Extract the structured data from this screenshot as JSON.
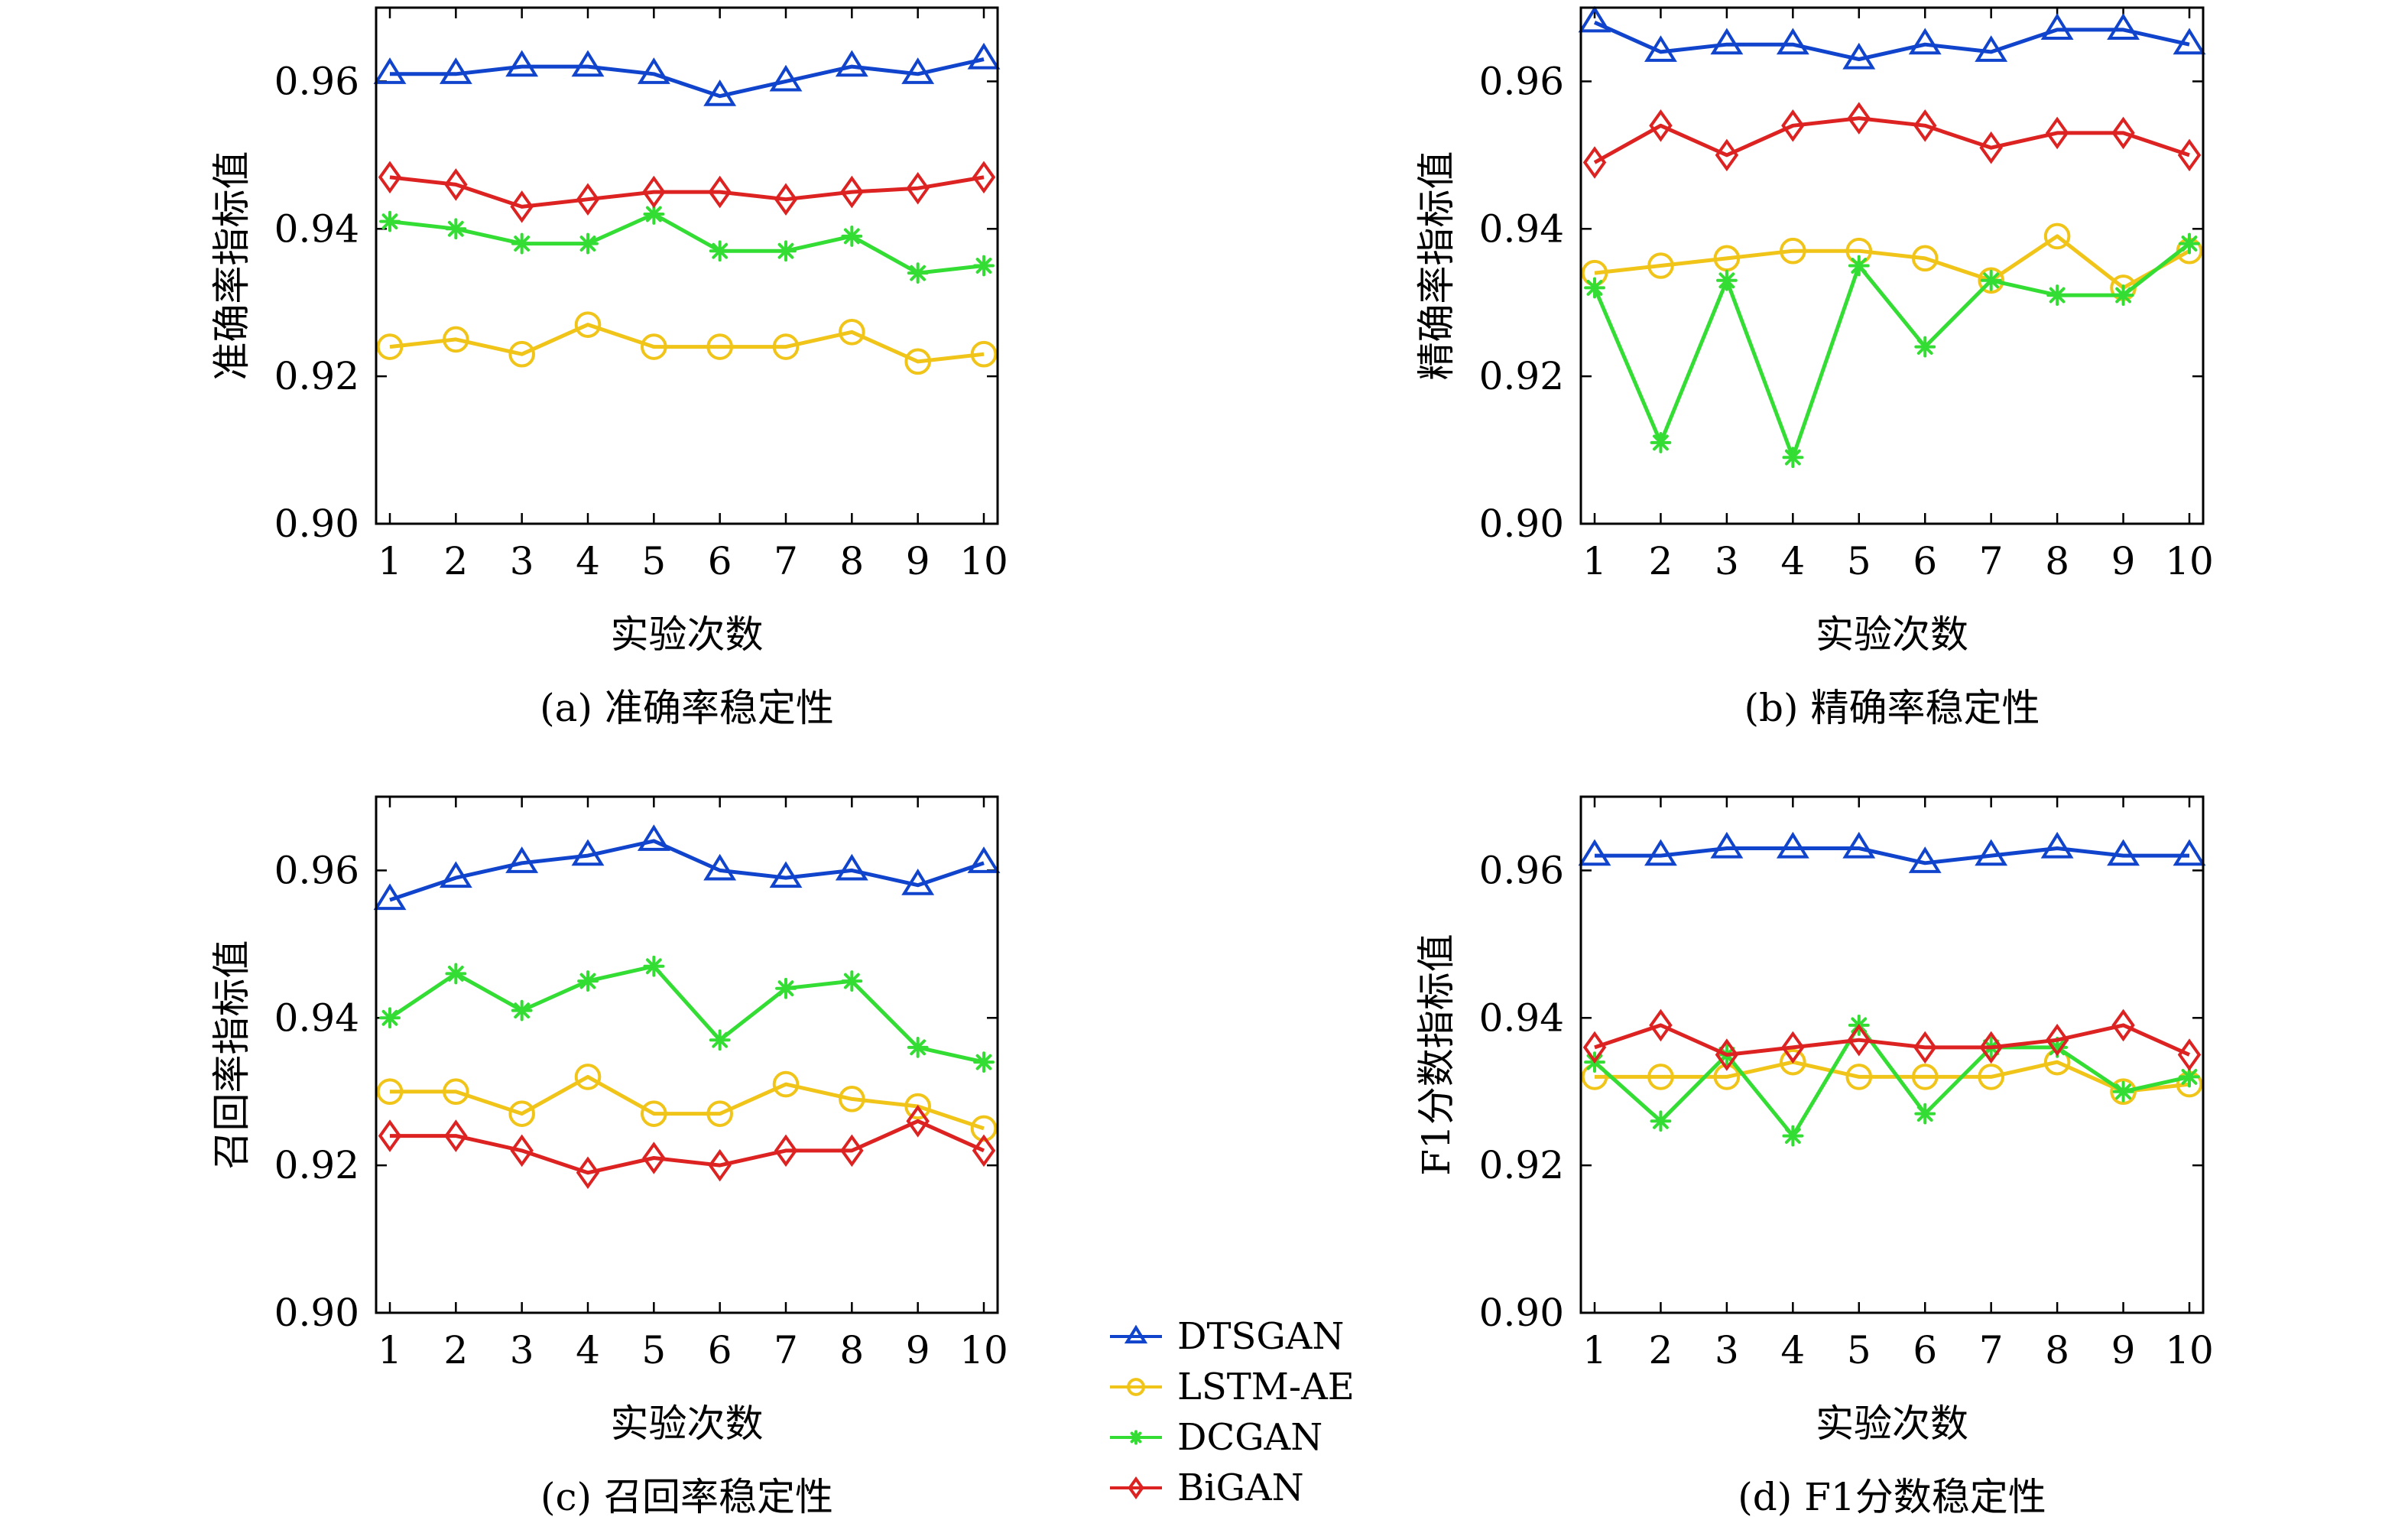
{
  "colors": {
    "DTSGAN": "#1144cc",
    "LSTM-AE": "#f0c419",
    "DCGAN": "#33dd33",
    "BiGAN": "#dd2222"
  },
  "legend": {
    "items": [
      {
        "name": "DTSGAN",
        "marker": "triangle-icon"
      },
      {
        "name": "LSTM-AE",
        "marker": "circle-icon"
      },
      {
        "name": "DCGAN",
        "marker": "asterisk-icon"
      },
      {
        "name": "BiGAN",
        "marker": "diamond-icon"
      }
    ]
  },
  "chart_data": [
    {
      "type": "line",
      "caption": "(a) 准确率稳定性",
      "xlabel": "实验次数",
      "ylabel": "准确率指标值",
      "x": [
        1,
        2,
        3,
        4,
        5,
        6,
        7,
        8,
        9,
        10
      ],
      "ylim": [
        0.9,
        0.97
      ],
      "yticks": [
        "0.90",
        "0.92",
        "0.94",
        "0.96"
      ],
      "series": [
        {
          "name": "DTSGAN",
          "values": [
            0.961,
            0.961,
            0.962,
            0.962,
            0.961,
            0.958,
            0.96,
            0.962,
            0.961,
            0.963
          ]
        },
        {
          "name": "LSTM-AE",
          "values": [
            0.924,
            0.925,
            0.923,
            0.927,
            0.924,
            0.924,
            0.924,
            0.926,
            0.922,
            0.923
          ]
        },
        {
          "name": "DCGAN",
          "values": [
            0.941,
            0.94,
            0.938,
            0.938,
            0.942,
            0.937,
            0.937,
            0.939,
            0.934,
            0.935
          ]
        },
        {
          "name": "BiGAN",
          "values": [
            0.947,
            0.946,
            0.943,
            0.944,
            0.945,
            0.945,
            0.944,
            0.945,
            0.9455,
            0.947
          ]
        }
      ]
    },
    {
      "type": "line",
      "caption": "(b) 精确率稳定性",
      "xlabel": "实验次数",
      "ylabel": "精确率指标值",
      "x": [
        1,
        2,
        3,
        4,
        5,
        6,
        7,
        8,
        9,
        10
      ],
      "ylim": [
        0.9,
        0.97
      ],
      "yticks": [
        "0.90",
        "0.92",
        "0.94",
        "0.96"
      ],
      "series": [
        {
          "name": "DTSGAN",
          "values": [
            0.968,
            0.964,
            0.965,
            0.965,
            0.963,
            0.965,
            0.964,
            0.967,
            0.967,
            0.965
          ]
        },
        {
          "name": "LSTM-AE",
          "values": [
            0.934,
            0.935,
            0.936,
            0.937,
            0.937,
            0.936,
            0.933,
            0.939,
            0.932,
            0.937
          ]
        },
        {
          "name": "DCGAN",
          "values": [
            0.932,
            0.911,
            0.933,
            0.909,
            0.935,
            0.924,
            0.933,
            0.931,
            0.931,
            0.938
          ]
        },
        {
          "name": "BiGAN",
          "values": [
            0.949,
            0.954,
            0.95,
            0.954,
            0.955,
            0.954,
            0.951,
            0.953,
            0.953,
            0.95
          ]
        }
      ]
    },
    {
      "type": "line",
      "caption": "(c) 召回率稳定性",
      "xlabel": "实验次数",
      "ylabel": "召回率指标值",
      "x": [
        1,
        2,
        3,
        4,
        5,
        6,
        7,
        8,
        9,
        10
      ],
      "ylim": [
        0.9,
        0.97
      ],
      "yticks": [
        "0.90",
        "0.92",
        "0.94",
        "0.96"
      ],
      "series": [
        {
          "name": "DTSGAN",
          "values": [
            0.956,
            0.959,
            0.961,
            0.962,
            0.964,
            0.96,
            0.959,
            0.96,
            0.958,
            0.961
          ]
        },
        {
          "name": "LSTM-AE",
          "values": [
            0.93,
            0.93,
            0.927,
            0.932,
            0.927,
            0.927,
            0.931,
            0.929,
            0.928,
            0.925
          ]
        },
        {
          "name": "DCGAN",
          "values": [
            0.94,
            0.946,
            0.941,
            0.945,
            0.947,
            0.937,
            0.944,
            0.945,
            0.936,
            0.934
          ]
        },
        {
          "name": "BiGAN",
          "values": [
            0.924,
            0.924,
            0.922,
            0.919,
            0.921,
            0.92,
            0.922,
            0.922,
            0.926,
            0.922
          ]
        }
      ]
    },
    {
      "type": "line",
      "caption": "(d) F1分数稳定性",
      "xlabel": "实验次数",
      "ylabel": "F1分数指标值",
      "x": [
        1,
        2,
        3,
        4,
        5,
        6,
        7,
        8,
        9,
        10
      ],
      "ylim": [
        0.9,
        0.97
      ],
      "yticks": [
        "0.90",
        "0.92",
        "0.94",
        "0.96"
      ],
      "series": [
        {
          "name": "DTSGAN",
          "values": [
            0.962,
            0.962,
            0.963,
            0.963,
            0.963,
            0.961,
            0.962,
            0.963,
            0.962,
            0.962
          ]
        },
        {
          "name": "LSTM-AE",
          "values": [
            0.932,
            0.932,
            0.932,
            0.934,
            0.932,
            0.932,
            0.932,
            0.934,
            0.93,
            0.931
          ]
        },
        {
          "name": "DCGAN",
          "values": [
            0.934,
            0.926,
            0.935,
            0.924,
            0.939,
            0.927,
            0.936,
            0.936,
            0.93,
            0.932
          ]
        },
        {
          "name": "BiGAN",
          "values": [
            0.936,
            0.939,
            0.935,
            0.936,
            0.937,
            0.936,
            0.936,
            0.937,
            0.939,
            0.935
          ]
        }
      ]
    }
  ]
}
